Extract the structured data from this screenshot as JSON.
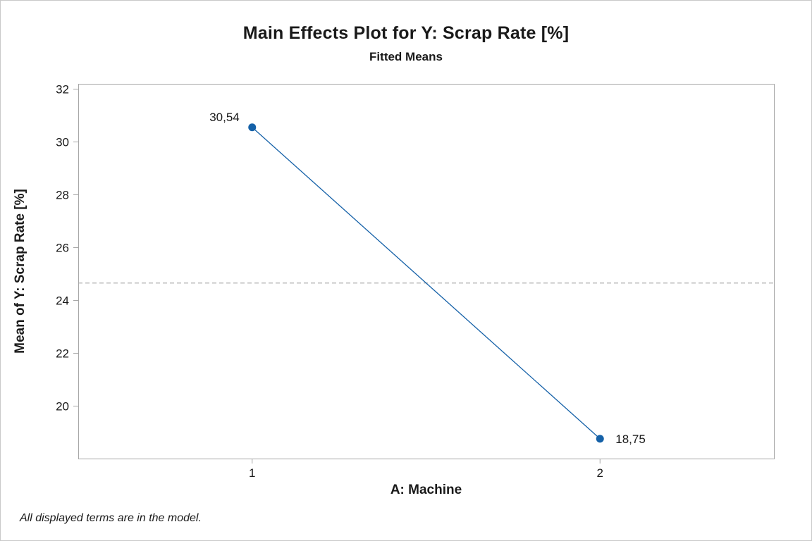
{
  "window": {
    "background": "#ffffff",
    "border_color": "#c9c9c9"
  },
  "chart_data": {
    "type": "line",
    "title": "Main Effects Plot for Y: Scrap Rate [%]",
    "subtitle": "Fitted Means",
    "xlabel": "A: Machine",
    "ylabel": "Mean of Y: Scrap Rate [%]",
    "categories": [
      "1",
      "2"
    ],
    "series": [
      {
        "name": "fitted-means",
        "values": [
          30.54,
          18.75
        ],
        "point_labels": [
          "30,54",
          "18,75"
        ]
      }
    ],
    "reference_line": {
      "value": 24.645,
      "style": "dashed"
    },
    "ylim": [
      18,
      32.187
    ],
    "yticks": [
      20,
      22,
      24,
      26,
      28,
      30,
      32
    ],
    "grid": false,
    "legend": false,
    "colors": {
      "series": "#1561a8",
      "axis": "#a6a6a6",
      "reference": "#a9a9a9",
      "text": "#1a1a1a"
    }
  },
  "footer": {
    "note": "All displayed terms are in the model."
  }
}
